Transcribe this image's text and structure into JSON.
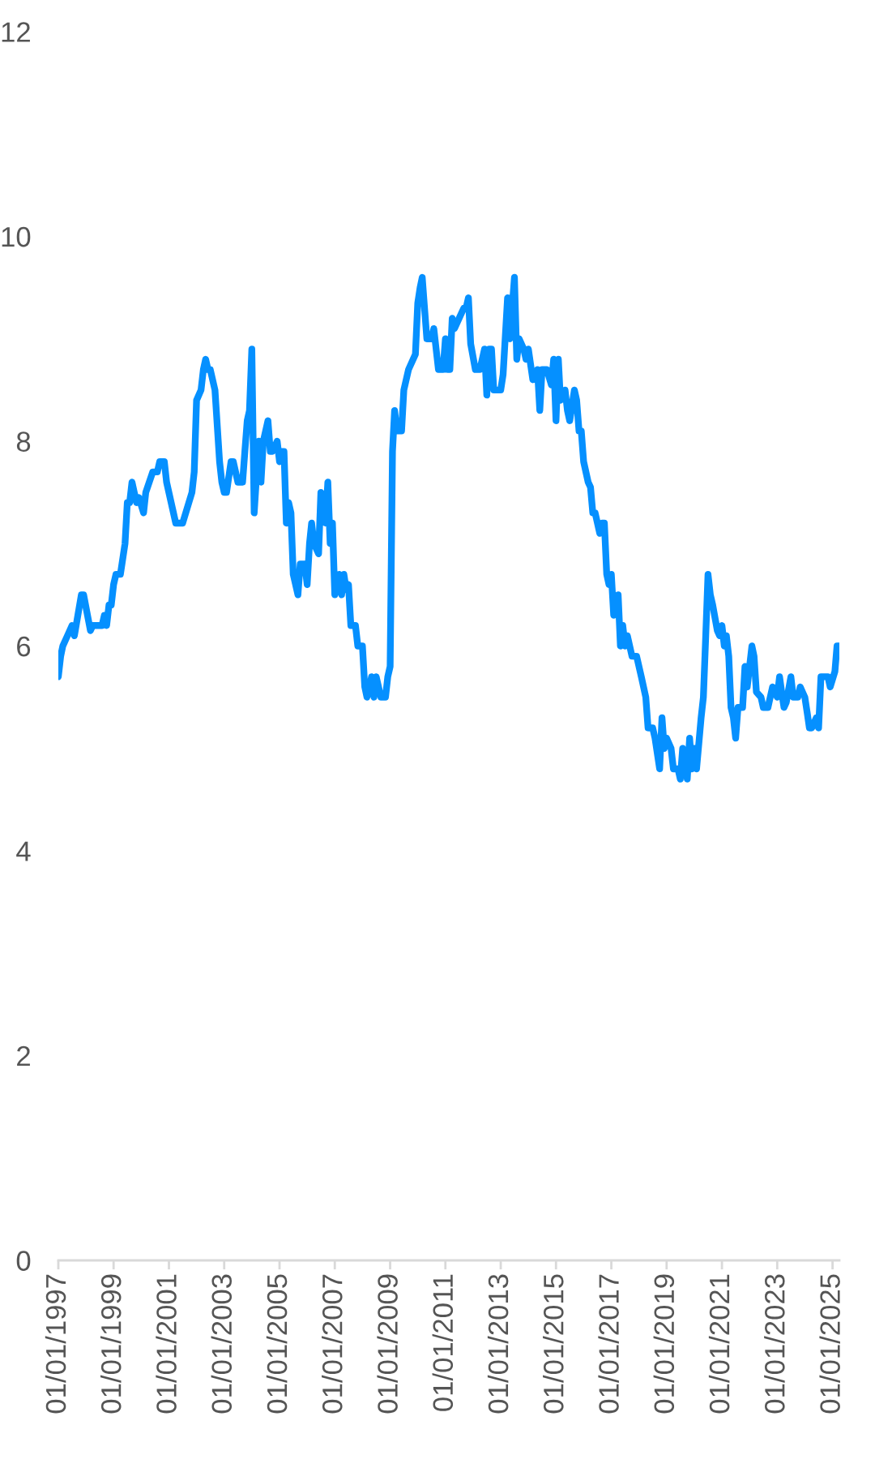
{
  "chart_data": {
    "type": "line",
    "xlim": [
      "1997-01",
      "2025-04"
    ],
    "ylim": [
      0,
      12
    ],
    "yticks": [
      0,
      2,
      4,
      6,
      8,
      10,
      12
    ],
    "xticks": [
      {
        "value": "1997-01-01",
        "label": "01/01/1997"
      },
      {
        "value": "1999-01-01",
        "label": "01/01/1999"
      },
      {
        "value": "2001-01-01",
        "label": "01/01/2001"
      },
      {
        "value": "2003-01-01",
        "label": "01/01/2003"
      },
      {
        "value": "2005-01-01",
        "label": "01/01/2005"
      },
      {
        "value": "2007-01-01",
        "label": "01/01/2007"
      },
      {
        "value": "2009-01-01",
        "label": "01/01/2009"
      },
      {
        "value": "2011-01-01",
        "label": "01/01/2011"
      },
      {
        "value": "2013-01-01",
        "label": "01/01/2013"
      },
      {
        "value": "2015-01-01",
        "label": "01/01/2015"
      },
      {
        "value": "2017-01-01",
        "label": "01/01/2017"
      },
      {
        "value": "2019-01-01",
        "label": "01/01/2019"
      },
      {
        "value": "2021-01-01",
        "label": "01/01/2021"
      },
      {
        "value": "2023-01-01",
        "label": "01/01/2023"
      },
      {
        "value": "2025-01-01",
        "label": "01/01/2025"
      }
    ],
    "grid": false,
    "legend": false,
    "marker": "none",
    "line_style": "solid",
    "series": [
      {
        "color": "#0590ff",
        "x": [
          "1997-01",
          "1997-02",
          "1997-03",
          "1997-05",
          "1997-07",
          "1997-08",
          "1997-11",
          "1997-12",
          "1998-03",
          "1998-04",
          "1998-08",
          "1998-09",
          "1998-10",
          "1998-11",
          "1998-12",
          "1999-01",
          "1999-02",
          "1999-04",
          "1999-06",
          "1999-07",
          "1999-08",
          "1999-09",
          "1999-10",
          "1999-11",
          "1999-12",
          "2000-02",
          "2000-03",
          "2000-06",
          "2000-08",
          "2000-09",
          "2000-11",
          "2000-12",
          "2001-04",
          "2001-07",
          "2001-11",
          "2001-12",
          "2002-01",
          "2002-03",
          "2002-04",
          "2002-05",
          "2002-06",
          "2002-07",
          "2002-09",
          "2002-11",
          "2002-12",
          "2003-01",
          "2003-02",
          "2003-04",
          "2003-05",
          "2003-07",
          "2003-09",
          "2003-10",
          "2003-11",
          "2003-12",
          "2004-01",
          "2004-02",
          "2004-04",
          "2004-05",
          "2004-06",
          "2004-08",
          "2004-09",
          "2004-10",
          "2004-12",
          "2005-01",
          "2005-02",
          "2005-03",
          "2005-04",
          "2005-05",
          "2005-06",
          "2005-07",
          "2005-09",
          "2005-10",
          "2005-12",
          "2006-01",
          "2006-02",
          "2006-03",
          "2006-04",
          "2006-06",
          "2006-07",
          "2006-09",
          "2006-10",
          "2006-11",
          "2006-12",
          "2007-01",
          "2007-03",
          "2007-04",
          "2007-05",
          "2007-06",
          "2007-07",
          "2007-08",
          "2007-10",
          "2007-11",
          "2008-01",
          "2008-02",
          "2008-03",
          "2008-05",
          "2008-06",
          "2008-07",
          "2008-09",
          "2008-11",
          "2008-12",
          "2009-01",
          "2009-02",
          "2009-03",
          "2009-04",
          "2009-06",
          "2009-07",
          "2009-09",
          "2009-11",
          "2009-12",
          "2010-01",
          "2010-02",
          "2010-03",
          "2010-05",
          "2010-07",
          "2010-08",
          "2010-10",
          "2010-12",
          "2011-01",
          "2011-02",
          "2011-03",
          "2011-04",
          "2011-05",
          "2011-07",
          "2011-09",
          "2011-10",
          "2011-11",
          "2011-12",
          "2012-02",
          "2012-04",
          "2012-06",
          "2012-07",
          "2012-08",
          "2012-09",
          "2012-10",
          "2012-12",
          "2013-01",
          "2013-02",
          "2013-04",
          "2013-05",
          "2013-07",
          "2013-08",
          "2013-09",
          "2013-11",
          "2013-12",
          "2014-01",
          "2014-03",
          "2014-05",
          "2014-06",
          "2014-07",
          "2014-09",
          "2014-11",
          "2014-12",
          "2015-01",
          "2015-02",
          "2015-03",
          "2015-05",
          "2015-06",
          "2015-07",
          "2015-09",
          "2015-10",
          "2015-11",
          "2015-12",
          "2016-01",
          "2016-03",
          "2016-04",
          "2016-05",
          "2016-06",
          "2016-08",
          "2016-09",
          "2016-10",
          "2016-11",
          "2016-12",
          "2017-01",
          "2017-02",
          "2017-04",
          "2017-05",
          "2017-06",
          "2017-07",
          "2017-08",
          "2017-10",
          "2017-12",
          "2018-02",
          "2018-04",
          "2018-05",
          "2018-07",
          "2018-08",
          "2018-10",
          "2018-11",
          "2018-12",
          "2019-01",
          "2019-03",
          "2019-04",
          "2019-06",
          "2019-07",
          "2019-08",
          "2019-10",
          "2019-11",
          "2019-12",
          "2020-01",
          "2020-02",
          "2020-04",
          "2020-05",
          "2020-06",
          "2020-07",
          "2020-08",
          "2020-09",
          "2020-11",
          "2020-12",
          "2021-01",
          "2021-02",
          "2021-03",
          "2021-04",
          "2021-05",
          "2021-06",
          "2021-07",
          "2021-08",
          "2021-10",
          "2021-11",
          "2021-12",
          "2022-02",
          "2022-03",
          "2022-04",
          "2022-06",
          "2022-07",
          "2022-09",
          "2022-10",
          "2022-11",
          "2023-01",
          "2023-02",
          "2023-03",
          "2023-04",
          "2023-05",
          "2023-07",
          "2023-08",
          "2023-10",
          "2023-11",
          "2024-01",
          "2024-02",
          "2024-03",
          "2024-04",
          "2024-06",
          "2024-07",
          "2024-08",
          "2024-09",
          "2024-11",
          "2024-12",
          "2025-02",
          "2025-03",
          "2025-04"
        ],
        "values": [
          5.7,
          5.9,
          6.0,
          6.1,
          6.2,
          6.1,
          6.5,
          6.5,
          6.15,
          6.2,
          6.2,
          6.3,
          6.2,
          6.4,
          6.4,
          6.6,
          6.7,
          6.7,
          7.0,
          7.4,
          7.4,
          7.6,
          7.5,
          7.4,
          7.45,
          7.3,
          7.5,
          7.7,
          7.7,
          7.8,
          7.8,
          7.6,
          7.2,
          7.2,
          7.5,
          7.7,
          8.4,
          8.5,
          8.7,
          8.8,
          8.7,
          8.7,
          8.5,
          7.8,
          7.6,
          7.5,
          7.5,
          7.8,
          7.8,
          7.6,
          7.6,
          7.9,
          8.2,
          8.3,
          8.9,
          7.3,
          8.0,
          7.6,
          8.0,
          8.2,
          7.9,
          7.9,
          8.0,
          7.8,
          7.9,
          7.9,
          7.2,
          7.4,
          7.3,
          6.7,
          6.5,
          6.8,
          6.8,
          6.6,
          7.0,
          7.2,
          7.0,
          6.9,
          7.5,
          7.2,
          7.6,
          7.0,
          7.2,
          6.5,
          6.7,
          6.5,
          6.7,
          6.55,
          6.6,
          6.2,
          6.2,
          6.0,
          6.0,
          5.6,
          5.5,
          5.7,
          5.5,
          5.7,
          5.5,
          5.5,
          5.7,
          5.8,
          7.9,
          8.3,
          8.1,
          8.1,
          8.5,
          8.7,
          8.8,
          8.85,
          9.35,
          9.5,
          9.6,
          9.0,
          9.0,
          9.1,
          8.7,
          8.7,
          9.0,
          8.7,
          8.7,
          9.2,
          9.1,
          9.2,
          9.3,
          9.3,
          9.4,
          8.95,
          8.7,
          8.7,
          8.9,
          8.45,
          8.9,
          8.9,
          8.5,
          8.5,
          8.5,
          8.65,
          9.4,
          9.0,
          9.6,
          8.8,
          9.0,
          8.9,
          8.8,
          8.9,
          8.6,
          8.7,
          8.3,
          8.7,
          8.7,
          8.55,
          8.8,
          8.2,
          8.8,
          8.4,
          8.5,
          8.3,
          8.2,
          8.5,
          8.4,
          8.1,
          8.1,
          7.8,
          7.6,
          7.55,
          7.3,
          7.3,
          7.1,
          7.2,
          7.2,
          6.7,
          6.6,
          6.7,
          6.3,
          6.5,
          6.0,
          6.2,
          6.0,
          6.1,
          5.9,
          5.9,
          5.7,
          5.5,
          5.2,
          5.2,
          5.1,
          4.8,
          5.3,
          5.0,
          5.1,
          5.0,
          4.8,
          4.8,
          4.7,
          5.0,
          4.7,
          5.1,
          4.8,
          5.0,
          4.8,
          5.3,
          5.5,
          6.1,
          6.7,
          6.5,
          6.4,
          6.15,
          6.1,
          6.2,
          6.0,
          6.1,
          5.9,
          5.4,
          5.3,
          5.1,
          5.4,
          5.4,
          5.8,
          5.6,
          6.0,
          5.9,
          5.55,
          5.5,
          5.4,
          5.4,
          5.5,
          5.6,
          5.5,
          5.7,
          5.55,
          5.4,
          5.45,
          5.7,
          5.5,
          5.5,
          5.6,
          5.5,
          5.35,
          5.2,
          5.2,
          5.3,
          5.2,
          5.7,
          5.7,
          5.7,
          5.6,
          5.75,
          6.0,
          6.0
        ]
      }
    ]
  }
}
